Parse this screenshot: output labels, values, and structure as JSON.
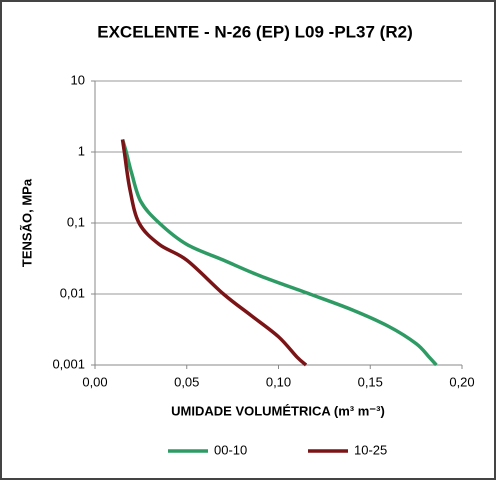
{
  "chart_data": {
    "type": "line",
    "title": "EXCELENTE - N-26 (EP) L09 -PL37 (R2)",
    "x_label": "UMIDADE VOLUMÉTRICA (m³ m⁻³)",
    "y_label": "TENSÃO, MPa",
    "y_scale": "log",
    "grid": true,
    "legend": "bottom",
    "xlim": [
      0,
      0.2
    ],
    "xticks": [
      {
        "value": 0,
        "label": "0,00"
      },
      {
        "value": 0.05,
        "label": "0,05"
      },
      {
        "value": 0.1,
        "label": "0,10"
      },
      {
        "value": 0.15,
        "label": "0,15"
      },
      {
        "value": 0.2,
        "label": "0,20"
      }
    ],
    "ylim": [
      0.001,
      10
    ],
    "yticks": [
      {
        "value": 0.001,
        "label": "0,001"
      },
      {
        "value": 0.01,
        "label": "0,01"
      },
      {
        "value": 0.1,
        "label": "0,1"
      },
      1,
      10
    ],
    "series": [
      {
        "name": "00-10",
        "color": "#2e9b64",
        "x": [
          0.015,
          0.017,
          0.02,
          0.025,
          0.035,
          0.05,
          0.07,
          0.09,
          0.117,
          0.14,
          0.16,
          0.175,
          0.182,
          0.186
        ],
        "values": [
          1.5,
          1,
          0.5,
          0.2,
          0.1,
          0.05,
          0.03,
          0.018,
          0.01,
          0.006,
          0.0035,
          0.002,
          0.0013,
          0.001
        ]
      },
      {
        "name": "10-25",
        "color": "#7b1416",
        "x": [
          0.015,
          0.016,
          0.019,
          0.024,
          0.035,
          0.05,
          0.07,
          0.085,
          0.1,
          0.11,
          0.115
        ],
        "values": [
          1.5,
          1,
          0.3,
          0.1,
          0.05,
          0.03,
          0.01,
          0.005,
          0.0025,
          0.0013,
          0.001
        ]
      }
    ]
  }
}
